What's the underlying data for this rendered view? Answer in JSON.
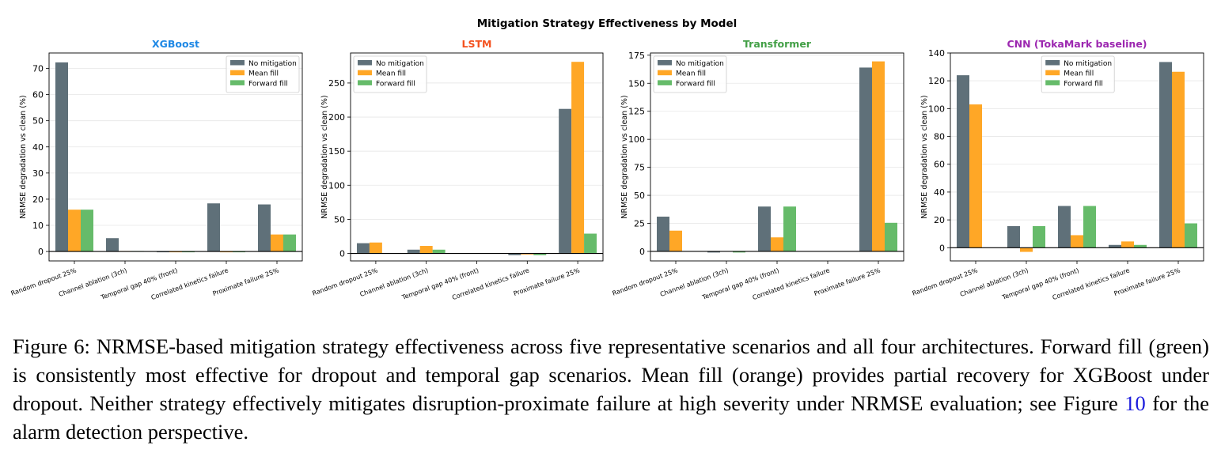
{
  "figure_title": "Mitigation Strategy Effectiveness by Model",
  "caption": {
    "part1": "Figure 6: NRMSE-based mitigation strategy effectiveness across five representative scenarios and all four architectures. Forward fill (green) is consistently most effective for dropout and temporal gap scenarios. Mean fill (orange) provides partial recovery for XGBoost under dropout. Neither strategy effectively mitigates disruption-proximate failure at high severity under NRMSE evaluation; see Figure ",
    "ref": "10",
    "part2": " for the alarm detection perspective."
  },
  "colors": {
    "No mitigation": "#5f7079",
    "Mean fill": "#ffa726",
    "Forward fill": "#66bb6a"
  },
  "chart_data": [
    {
      "type": "bar",
      "title": "XGBoost",
      "title_color": "#1e88e5",
      "ylabel": "NRMSE degradation vs clean (%)",
      "categories": [
        "Random dropout 25%",
        "Channel ablation (3ch)",
        "Temporal gap 40% (front)",
        "Correlated kinetics failure",
        "Proximate failure 25%"
      ],
      "ylim": [
        -3.6,
        75.9
      ],
      "yticks": [
        0,
        10,
        20,
        30,
        40,
        50,
        60,
        70
      ],
      "grid": true,
      "legend_position": "top-right",
      "series": [
        {
          "name": "No mitigation",
          "values": [
            72.3,
            5.1,
            -0.3,
            18.4,
            18.0
          ]
        },
        {
          "name": "Mean fill",
          "values": [
            16.0,
            0.2,
            -0.3,
            -0.3,
            6.5
          ]
        },
        {
          "name": "Forward fill",
          "values": [
            16.0,
            0.2,
            -0.3,
            -0.3,
            6.5
          ]
        }
      ]
    },
    {
      "type": "bar",
      "title": "LSTM",
      "title_color": "#f4511e",
      "ylabel": "NRMSE degradation vs clean (%)",
      "categories": [
        "Random dropout 25%",
        "Channel ablation (3ch)",
        "Temporal gap 40% (front)",
        "Correlated kinetics failure",
        "Proximate failure 25%"
      ],
      "ylim": [
        -11,
        294
      ],
      "yticks": [
        0,
        50,
        100,
        150,
        200,
        250
      ],
      "grid": true,
      "legend_position": "top-left",
      "series": [
        {
          "name": "No mitigation",
          "values": [
            15,
            5.5,
            0,
            -2.5,
            212
          ]
        },
        {
          "name": "Mean fill",
          "values": [
            16,
            11,
            0,
            -1.5,
            281
          ]
        },
        {
          "name": "Forward fill",
          "values": [
            0,
            5.5,
            0,
            -2.5,
            29
          ]
        }
      ]
    },
    {
      "type": "bar",
      "title": "Transformer",
      "title_color": "#43a047",
      "ylabel": "NRMSE degradation vs clean (%)",
      "categories": [
        "Random dropout 25%",
        "Channel ablation (3ch)",
        "Temporal gap 40% (front)",
        "Correlated kinetics failure",
        "Proximate failure 25%"
      ],
      "ylim": [
        -8.5,
        177
      ],
      "yticks": [
        0,
        25,
        50,
        75,
        100,
        125,
        150,
        175
      ],
      "grid": true,
      "legend_position": "top-left",
      "series": [
        {
          "name": "No mitigation",
          "values": [
            31,
            -1,
            40,
            0,
            164
          ]
        },
        {
          "name": "Mean fill",
          "values": [
            18.5,
            -0.3,
            12.5,
            0,
            169.5
          ]
        },
        {
          "name": "Forward fill",
          "values": [
            0,
            -1,
            40,
            0,
            25.5
          ]
        }
      ]
    },
    {
      "type": "bar",
      "title": "CNN (TokaMark baseline)",
      "title_color": "#9c27b0",
      "ylabel": "NRMSE degradation vs clean (%)",
      "categories": [
        "Random dropout 25%",
        "Channel ablation (3ch)",
        "Temporal gap 40% (front)",
        "Correlated kinetics failure",
        "Proximate failure 25%"
      ],
      "ylim": [
        -9.5,
        140
      ],
      "yticks": [
        0,
        20,
        40,
        60,
        80,
        100,
        120,
        140
      ],
      "grid": true,
      "legend_position": "top-center",
      "series": [
        {
          "name": "No mitigation",
          "values": [
            124,
            15.5,
            30,
            2,
            133.5
          ]
        },
        {
          "name": "Mean fill",
          "values": [
            103,
            -3,
            9,
            4.5,
            126.5
          ]
        },
        {
          "name": "Forward fill",
          "values": [
            0,
            15.5,
            30,
            2,
            17.5
          ]
        }
      ]
    }
  ]
}
